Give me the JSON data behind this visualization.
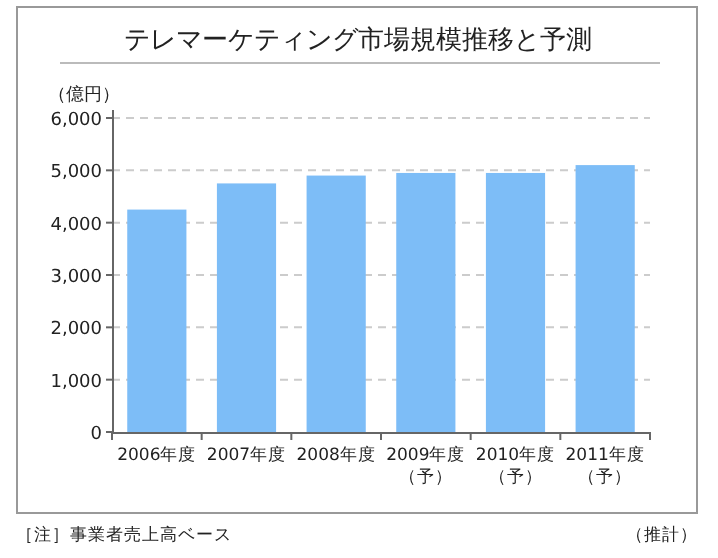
{
  "chart_data": {
    "type": "bar",
    "title": "テレマーケティング市場規模推移と予測",
    "ylabel": "（億円）",
    "categories": [
      "2006年度",
      "2007年度",
      "2008年度",
      "2009年度（予）",
      "2010年度（予）",
      "2011年度（予）"
    ],
    "values": [
      4250,
      4750,
      4900,
      4950,
      4950,
      5100
    ],
    "color": "#7dbdf7",
    "ylim": [
      0,
      6000
    ],
    "yticks": [
      {
        "value": 0,
        "label": "0"
      },
      {
        "value": 1000,
        "label": "1,000"
      },
      {
        "value": 2000,
        "label": "2,000"
      },
      {
        "value": 3000,
        "label": "3,000"
      },
      {
        "value": 4000,
        "label": "4,000"
      },
      {
        "value": 5000,
        "label": "5,000"
      },
      {
        "value": 6000,
        "label": "6,000"
      }
    ],
    "grid": "y",
    "annotations": [
      "［注］事業者売上高ベース",
      "（推計）"
    ]
  }
}
